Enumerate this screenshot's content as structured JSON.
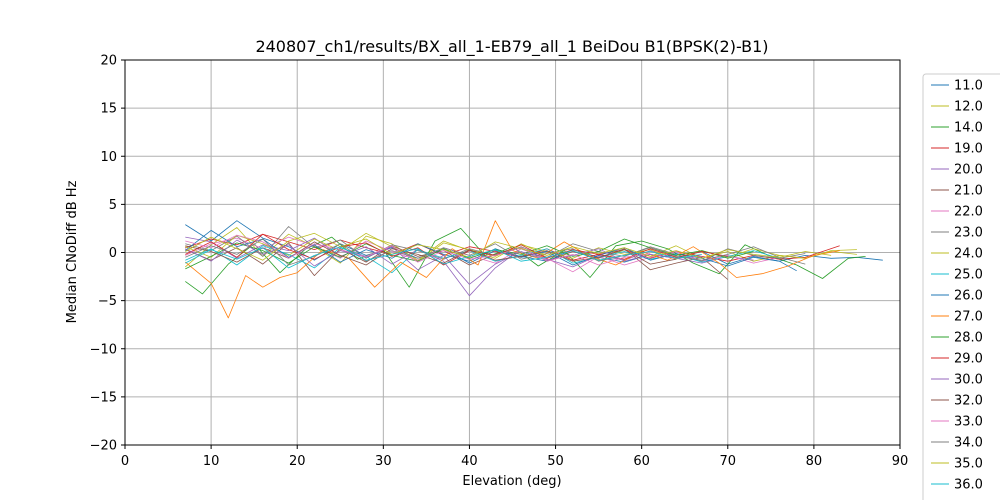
{
  "chart_data": {
    "type": "line",
    "title": "240807_ch1/results/BX_all_1-EB79_all_1 BeiDou B1(BPSK(2)-B1)",
    "xlabel": "Elevation (deg)",
    "ylabel": "Median CNoDiff dB Hz",
    "xlim": [
      0,
      90
    ],
    "ylim": [
      -20,
      20
    ],
    "xticks": [
      0,
      10,
      20,
      30,
      40,
      50,
      60,
      70,
      80,
      90
    ],
    "yticks": [
      -20,
      -15,
      -10,
      -5,
      0,
      5,
      10,
      15,
      20
    ],
    "grid": true,
    "legend_placement": "right, outside plot",
    "series": [
      {
        "name": "11.0",
        "color": "#1f77b4",
        "x": [
          7,
          10,
          13,
          16,
          19,
          22,
          25,
          28,
          31,
          34,
          37,
          40,
          43,
          46,
          49,
          52,
          55,
          58,
          61,
          64,
          67,
          70,
          73,
          76,
          79,
          82,
          85,
          88
        ],
        "y": [
          2.9,
          1.2,
          3.3,
          1.5,
          0.6,
          -0.8,
          0.9,
          -0.3,
          0.5,
          -0.6,
          0.4,
          -1.1,
          0.2,
          -0.4,
          -0.9,
          0.3,
          -0.5,
          -1.0,
          -0.2,
          -0.6,
          0.1,
          -1.2,
          -0.4,
          -0.9,
          -0.3,
          -0.6,
          -0.5,
          -0.8
        ]
      },
      {
        "name": "12.0",
        "color": "#bcbd22",
        "x": [
          7,
          10,
          13,
          16,
          19,
          22,
          25,
          28,
          31,
          34,
          37,
          40,
          43,
          46,
          49,
          52,
          55,
          58,
          61,
          64,
          67,
          70,
          73,
          76,
          79,
          82,
          85
        ],
        "y": [
          -1.5,
          0.8,
          2.6,
          -0.4,
          1.9,
          0.6,
          -1.1,
          1.7,
          0.9,
          -0.8,
          1.2,
          0.2,
          -0.6,
          0.9,
          -0.3,
          0.6,
          -0.9,
          0.3,
          -0.4,
          0.7,
          -0.6,
          0.1,
          -0.9,
          -0.3,
          -0.6,
          0.2,
          0.3
        ]
      },
      {
        "name": "14.0",
        "color": "#2ca02c",
        "x": [
          7,
          9,
          12,
          15,
          18,
          21,
          24,
          27,
          30,
          33,
          36,
          39,
          42,
          45,
          48,
          51,
          54,
          57,
          60,
          63,
          66,
          69,
          72,
          75,
          78,
          81,
          84,
          86
        ],
        "y": [
          -3.0,
          -4.3,
          -1.2,
          0.9,
          -2.1,
          0.4,
          1.6,
          -0.7,
          0.3,
          -3.6,
          1.2,
          2.5,
          -0.5,
          0.6,
          -1.4,
          0.2,
          -2.6,
          0.7,
          1.2,
          0.4,
          -1.1,
          -2.2,
          0.8,
          -0.4,
          -1.3,
          -2.7,
          -0.6,
          -0.4
        ]
      },
      {
        "name": "19.0",
        "color": "#d62728",
        "x": [
          7,
          10,
          13,
          16,
          19,
          22,
          25,
          28,
          31,
          34,
          37,
          40,
          43,
          46,
          49,
          52,
          55,
          58,
          61,
          64,
          67,
          70,
          73,
          76,
          79,
          83
        ],
        "y": [
          0.5,
          1.4,
          0.8,
          1.9,
          1.1,
          0.3,
          1.3,
          0.5,
          -0.2,
          0.9,
          -0.3,
          0.6,
          0.1,
          -0.5,
          0.4,
          -0.8,
          -0.2,
          0.3,
          -0.6,
          0.1,
          -0.4,
          -0.9,
          -0.3,
          -0.7,
          -0.5,
          0.7
        ]
      },
      {
        "name": "20.0",
        "color": "#9467bd",
        "x": [
          7,
          10,
          13,
          16,
          19,
          22,
          25,
          28,
          31,
          34,
          37,
          40,
          43,
          46,
          49,
          52,
          55,
          58,
          61,
          64,
          67,
          70,
          73
        ],
        "y": [
          1.6,
          1.1,
          -0.6,
          0.8,
          0.2,
          1.5,
          -0.4,
          0.6,
          -1.2,
          0.3,
          -0.9,
          -4.5,
          -1.6,
          0.4,
          -0.7,
          -1.5,
          -0.3,
          -0.8,
          0.2,
          -0.6,
          -1.1,
          -0.4,
          -0.8
        ]
      },
      {
        "name": "21.0",
        "color": "#8c564b",
        "x": [
          7,
          10,
          13,
          16,
          19,
          22,
          25,
          28,
          31,
          34,
          37,
          40,
          43,
          46,
          49,
          52,
          55,
          58,
          61,
          64,
          67,
          70
        ],
        "y": [
          0.3,
          -0.8,
          0.5,
          -1.2,
          1.0,
          -2.4,
          0.4,
          -1.0,
          0.7,
          -0.4,
          0.2,
          -1.3,
          -0.2,
          0.5,
          -0.9,
          0.1,
          -0.6,
          0.4,
          -1.8,
          -1.1,
          -0.5,
          -2.8
        ]
      },
      {
        "name": "22.0",
        "color": "#e377c2",
        "x": [
          7,
          10,
          13,
          16,
          19,
          22,
          25,
          28,
          31,
          34,
          37,
          40,
          43,
          46,
          49,
          52,
          55,
          58,
          61,
          64,
          67,
          70,
          73,
          76
        ],
        "y": [
          -0.3,
          0.9,
          1.5,
          0.4,
          1.6,
          0.7,
          -0.6,
          1.2,
          0.1,
          -0.8,
          0.5,
          -0.3,
          -1.1,
          0.4,
          -0.6,
          -2.0,
          -0.4,
          -1.3,
          -0.5,
          0.1,
          -0.9,
          -0.3,
          -1.1,
          -0.5
        ]
      },
      {
        "name": "23.0",
        "color": "#7f7f7f",
        "x": [
          7,
          10,
          13,
          16,
          19,
          22,
          25,
          28,
          31,
          34,
          37,
          40,
          43,
          46,
          49,
          52,
          55,
          58,
          61,
          64,
          67,
          70,
          73,
          76,
          79
        ],
        "y": [
          0.9,
          0.2,
          1.7,
          -0.4,
          2.7,
          0.5,
          1.3,
          -0.6,
          0.8,
          0.2,
          -0.7,
          0.4,
          -0.3,
          0.6,
          -0.5,
          0.9,
          0.1,
          -0.4,
          0.6,
          -0.2,
          -0.9,
          0.4,
          -0.3,
          -0.6,
          -0.1
        ]
      },
      {
        "name": "24.0",
        "color": "#bcbd22",
        "x": [
          7,
          10,
          13,
          16,
          19,
          22,
          25,
          28,
          31,
          34,
          37,
          40,
          43,
          46,
          49,
          52,
          55,
          58,
          61,
          64,
          67,
          70,
          73,
          76,
          79,
          82,
          85
        ],
        "y": [
          0.6,
          -0.5,
          1.8,
          0.9,
          -0.3,
          1.4,
          0.2,
          2.0,
          0.6,
          -0.9,
          1.0,
          0.3,
          -0.4,
          0.8,
          0.1,
          -0.6,
          0.5,
          -0.2,
          0.3,
          -0.7,
          0.2,
          -0.5,
          0.4,
          -0.3,
          -0.6,
          0.1,
          -0.2
        ]
      },
      {
        "name": "25.0",
        "color": "#17becf",
        "x": [
          7,
          10,
          13,
          16,
          19,
          22,
          25,
          28,
          31,
          34,
          37,
          40,
          43,
          46,
          49,
          52,
          55,
          58,
          61,
          64,
          67,
          70,
          73,
          76
        ],
        "y": [
          -0.8,
          0.4,
          -1.3,
          0.7,
          -0.2,
          -1.6,
          0.5,
          -0.4,
          -2.1,
          0.3,
          -0.6,
          0.2,
          -0.9,
          -0.3,
          0.4,
          -1.1,
          -0.5,
          0.1,
          -0.7,
          -0.2,
          -1.0,
          -0.4,
          0.2,
          -0.6
        ]
      },
      {
        "name": "26.0",
        "color": "#1f77b4",
        "x": [
          7,
          10,
          13,
          16,
          19,
          22,
          25,
          28,
          31,
          34,
          37,
          40,
          43,
          46,
          49,
          52,
          55,
          58,
          61,
          64,
          67,
          70,
          73,
          76,
          78
        ],
        "y": [
          0.2,
          2.3,
          0.6,
          1.4,
          -0.5,
          0.8,
          -1.0,
          0.3,
          -0.6,
          0.9,
          -0.2,
          -0.9,
          0.4,
          -0.5,
          0.1,
          -1.3,
          -0.3,
          0.5,
          -0.8,
          -0.1,
          -0.6,
          -1.4,
          -0.5,
          -0.9,
          -1.9
        ]
      },
      {
        "name": "27.0",
        "color": "#ff7f0e",
        "x": [
          7,
          10,
          12,
          14,
          16,
          18,
          20,
          23,
          26,
          29,
          32,
          35,
          38,
          41,
          43,
          45,
          48,
          51,
          54,
          57,
          60,
          63,
          66,
          69,
          71,
          74,
          77,
          80,
          83
        ],
        "y": [
          -1.0,
          -3.2,
          -6.8,
          -2.4,
          -3.6,
          -2.6,
          -2.1,
          0.3,
          -0.6,
          -3.6,
          -1.0,
          -2.6,
          0.4,
          -1.3,
          3.3,
          0.2,
          -0.6,
          1.1,
          -0.4,
          -1.3,
          0.1,
          -0.8,
          0.6,
          -1.1,
          -2.6,
          -2.2,
          -1.4,
          -0.3,
          0.2
        ]
      },
      {
        "name": "28.0",
        "color": "#2ca02c",
        "x": [
          7,
          10,
          13,
          16,
          19,
          22,
          25,
          28,
          31,
          34,
          37,
          40,
          43,
          46,
          49,
          52,
          55,
          58,
          61,
          64,
          67,
          70,
          73
        ],
        "y": [
          -1.7,
          -0.4,
          1.0,
          0.2,
          -1.1,
          0.6,
          -0.5,
          0.9,
          -0.3,
          -0.9,
          0.4,
          -0.6,
          0.3,
          -0.2,
          0.7,
          -0.4,
          0.1,
          1.4,
          0.5,
          -0.3,
          0.2,
          -0.6,
          0.1
        ]
      },
      {
        "name": "29.0",
        "color": "#d62728",
        "x": [
          7,
          10,
          13,
          16,
          19,
          22,
          25,
          28,
          31,
          34,
          37,
          40,
          43,
          46,
          49,
          52,
          55,
          58,
          61,
          64,
          67,
          70
        ],
        "y": [
          -0.2,
          1.1,
          -0.5,
          1.9,
          0.3,
          -0.7,
          0.6,
          1.0,
          -0.4,
          0.5,
          -1.3,
          0.2,
          -0.3,
          0.8,
          -0.6,
          0.3,
          -0.2,
          -0.7,
          0.4,
          -0.5,
          0.1,
          -0.4
        ]
      },
      {
        "name": "30.0",
        "color": "#9467bd",
        "x": [
          7,
          10,
          13,
          16,
          19,
          22,
          25,
          28,
          31,
          34,
          37,
          40,
          43,
          46,
          49,
          52,
          55,
          58,
          61,
          64,
          67
        ],
        "y": [
          0.4,
          -0.9,
          1.3,
          -0.2,
          0.8,
          -1.4,
          0.2,
          -0.5,
          0.6,
          -1.8,
          -0.3,
          -3.3,
          -1.2,
          0.1,
          -0.8,
          -0.3,
          0.4,
          -0.9,
          -0.2,
          -0.6,
          -0.4
        ]
      },
      {
        "name": "32.0",
        "color": "#8c564b",
        "x": [
          7,
          10,
          13,
          16,
          19,
          22,
          25,
          28,
          31,
          34,
          37,
          40,
          43,
          46,
          49,
          52,
          55,
          58,
          61,
          64
        ],
        "y": [
          0.7,
          0.1,
          -1.0,
          0.5,
          -0.6,
          1.1,
          -0.3,
          -1.3,
          0.4,
          -0.2,
          -1.1,
          0.3,
          -0.8,
          -0.4,
          0.2,
          -0.9,
          -0.5,
          0.3,
          -1.2,
          -0.7
        ]
      },
      {
        "name": "33.0",
        "color": "#e377c2",
        "x": [
          7,
          10,
          13,
          16,
          19,
          22,
          25,
          28,
          31,
          34,
          37,
          40,
          43,
          46,
          49,
          52,
          55,
          58,
          61
        ],
        "y": [
          1.2,
          0.5,
          1.8,
          1.1,
          -0.6,
          0.9,
          0.3,
          -0.4,
          0.7,
          -1.0,
          0.2,
          -0.7,
          -0.3,
          0.5,
          -0.9,
          -0.2,
          -1.3,
          -0.5,
          -0.1
        ]
      },
      {
        "name": "34.0",
        "color": "#7f7f7f",
        "x": [
          7,
          10,
          13,
          16,
          19,
          22,
          25,
          28,
          31,
          34,
          37,
          40,
          43,
          46,
          49,
          52,
          55,
          58,
          61,
          64,
          67,
          70,
          73,
          76,
          79
        ],
        "y": [
          -0.5,
          0.7,
          -0.2,
          1.4,
          -1.3,
          -0.4,
          0.9,
          -0.9,
          0.2,
          -0.6,
          0.5,
          -0.3,
          0.9,
          -0.7,
          -0.1,
          0.4,
          -0.9,
          -0.3,
          0.5,
          -0.4,
          -0.8,
          -0.2,
          0.6,
          -0.5,
          -1.2
        ]
      },
      {
        "name": "35.0",
        "color": "#bcbd22",
        "x": [
          7,
          10,
          13,
          16,
          19,
          22,
          25,
          28,
          31,
          34,
          37,
          40,
          43,
          46,
          49,
          52,
          55,
          58,
          61,
          64,
          67,
          70,
          73,
          76,
          79,
          82
        ],
        "y": [
          0.1,
          1.6,
          0.4,
          -0.8,
          1.2,
          2.0,
          0.6,
          1.4,
          -0.2,
          0.8,
          0.3,
          -0.5,
          1.1,
          0.4,
          -0.3,
          0.6,
          -0.1,
          0.5,
          -0.4,
          0.2,
          -0.6,
          0.3,
          -0.2,
          -0.5,
          0.1,
          -0.3
        ]
      },
      {
        "name": "36.0",
        "color": "#17becf",
        "x": [
          7,
          10,
          13,
          16,
          19,
          22,
          25,
          28,
          31,
          34,
          37,
          40,
          43,
          46,
          49,
          52,
          55,
          58,
          61,
          64,
          67
        ],
        "y": [
          -1.1,
          0.3,
          -0.7,
          0.5,
          -1.6,
          -0.3,
          0.6,
          -0.8,
          -0.2,
          0.4,
          -1.2,
          -0.4,
          0.3,
          -0.9,
          -0.5,
          0.2,
          -0.8,
          -0.3,
          0.1,
          -0.6,
          -0.2
        ]
      }
    ]
  }
}
